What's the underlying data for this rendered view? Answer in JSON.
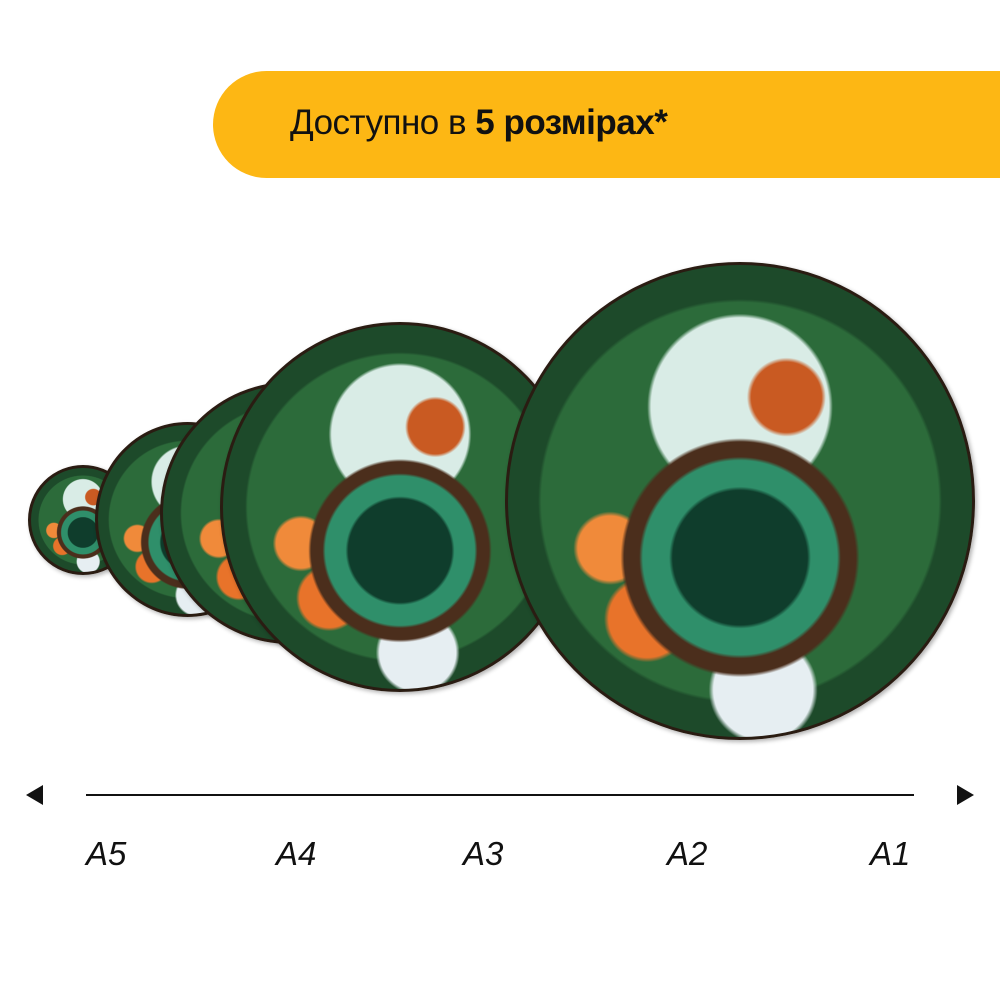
{
  "banner": {
    "text_regular": "Доступно в ",
    "text_bold": "5 розмірах*",
    "color": "#fdb714"
  },
  "puzzles": [
    {
      "size": "A5"
    },
    {
      "size": "A4"
    },
    {
      "size": "A3"
    },
    {
      "size": "A2"
    },
    {
      "size": "A1"
    }
  ],
  "scale": {
    "left_icon": "arrow-left-icon",
    "right_icon": "arrow-right-icon",
    "labels": [
      "A5",
      "A4",
      "A3",
      "A2",
      "A1"
    ]
  }
}
